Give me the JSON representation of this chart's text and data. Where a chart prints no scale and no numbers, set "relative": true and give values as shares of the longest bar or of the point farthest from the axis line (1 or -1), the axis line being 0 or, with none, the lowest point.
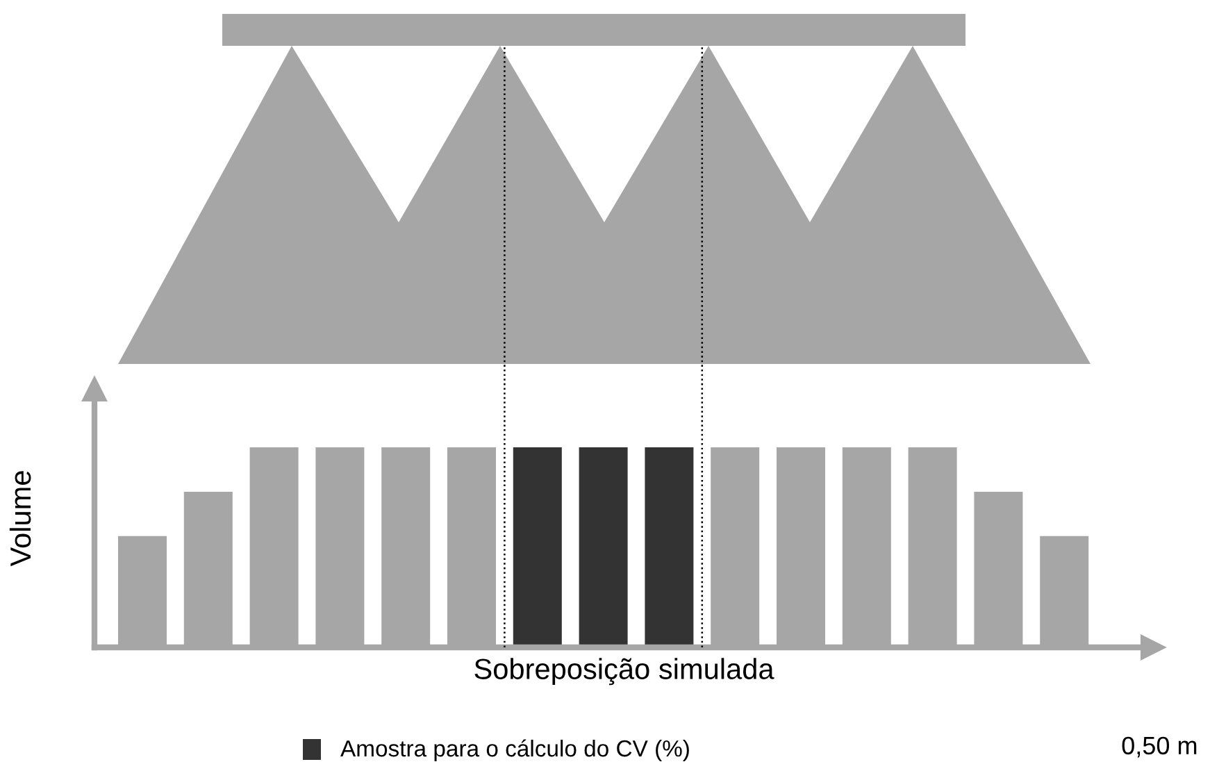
{
  "chart_data": {
    "type": "bar",
    "relative": true,
    "xlabel": "Sobreposição simulada",
    "ylabel": "Volume",
    "categories": [
      null,
      null,
      null,
      null,
      null,
      null,
      null,
      null,
      null,
      null,
      null,
      null,
      null,
      null,
      null
    ],
    "values": [
      0.556,
      0.778,
      1,
      1,
      1,
      1,
      1,
      1,
      1,
      1,
      1,
      1,
      1,
      0.778,
      0.556
    ],
    "colors": [
      "#a6a6a6",
      "#a6a6a6",
      "#a6a6a6",
      "#a6a6a6",
      "#a6a6a6",
      "#a6a6a6",
      "#333333",
      "#333333",
      "#333333",
      "#a6a6a6",
      "#a6a6a6",
      "#a6a6a6",
      "#a6a6a6",
      "#a6a6a6",
      "#a6a6a6"
    ],
    "annotations": [
      "Amostra para o cálculo do CV (%)",
      "0,50 m"
    ],
    "grid": false
  }
}
